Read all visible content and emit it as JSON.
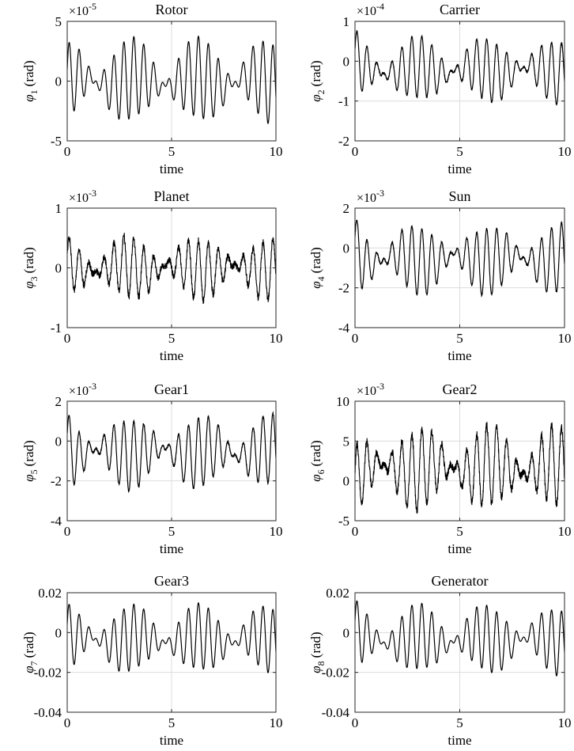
{
  "chart_data": [
    {
      "type": "line",
      "title": "Rotor",
      "ylabel_sym": "φ",
      "ylabel_sub": "1",
      "ylabel_unit": "(rad)",
      "xlabel": "time",
      "xlim": [
        0,
        10
      ],
      "ylim": [
        -5,
        5
      ],
      "xticks": [
        "0",
        "5",
        "10"
      ],
      "yticks": [
        "-5",
        "0",
        "5"
      ],
      "exponent_base": "×10",
      "exponent_power": "-5",
      "signal": {
        "amplitude": 3.4,
        "freqs": [
          1.95,
          2.25
        ],
        "noise": 0.0
      },
      "x": [
        0,
        1,
        2,
        3,
        4,
        5,
        6,
        7,
        8,
        9,
        10
      ],
      "values": [
        0,
        4.1,
        -2.5,
        4.2,
        -0.5,
        4.3,
        -2.3,
        4.2,
        -1.5,
        4.2,
        2.8
      ]
    },
    {
      "type": "line",
      "title": "Carrier",
      "ylabel_sym": "φ",
      "ylabel_sub": "2",
      "ylabel_unit": "(rad)",
      "xlabel": "time",
      "xlim": [
        0,
        10
      ],
      "ylim": [
        -2,
        1
      ],
      "xticks": [
        "0",
        "5",
        "10"
      ],
      "yticks": [
        "-2",
        "-1",
        "0",
        "1"
      ],
      "exponent_base": "×10",
      "exponent_power": "-4",
      "signal": {
        "amplitude": 0.78,
        "offset": -0.22,
        "freqs": [
          1.95,
          2.25
        ],
        "noise": 0.03
      },
      "x": [
        0,
        1,
        2,
        3,
        4,
        5,
        6,
        7,
        8,
        9,
        10
      ],
      "values": [
        0,
        0.5,
        -1.0,
        0.5,
        -0.6,
        0.5,
        -1.0,
        0.5,
        -0.6,
        0.5,
        -0.7
      ]
    },
    {
      "type": "line",
      "title": "Planet",
      "ylabel_sym": "φ",
      "ylabel_sub": "3",
      "ylabel_unit": "(rad)",
      "xlabel": "time",
      "xlim": [
        0,
        10
      ],
      "ylim": [
        -1,
        1
      ],
      "xticks": [
        "0",
        "5",
        "10"
      ],
      "yticks": [
        "-1",
        "0",
        "1"
      ],
      "exponent_base": "×10",
      "exponent_power": "-3",
      "signal": {
        "amplitude": 0.5,
        "freqs": [
          1.95,
          2.25
        ],
        "noise": 0.12
      },
      "x": [
        0,
        1,
        2,
        3,
        4,
        5,
        6,
        7,
        8,
        9,
        10
      ],
      "values": [
        0,
        0.6,
        -0.7,
        0.75,
        -0.4,
        0.7,
        -0.6,
        0.7,
        -0.5,
        0.7,
        0.3
      ]
    },
    {
      "type": "line",
      "title": "Sun",
      "ylabel_sym": "φ",
      "ylabel_sub": "4",
      "ylabel_unit": "(rad)",
      "xlabel": "time",
      "xlim": [
        0,
        10
      ],
      "ylim": [
        -4,
        2
      ],
      "xticks": [
        "0",
        "5",
        "10"
      ],
      "yticks": [
        "-4",
        "-2",
        "0",
        "2"
      ],
      "exponent_base": "×10",
      "exponent_power": "-3",
      "signal": {
        "amplitude": 1.7,
        "offset": -0.55,
        "freqs": [
          1.95,
          2.25
        ],
        "noise": 0.03
      },
      "x": [
        0,
        1,
        2,
        3,
        4,
        5,
        6,
        7,
        8,
        9,
        10
      ],
      "values": [
        0,
        1.1,
        -2.1,
        1.1,
        -1.2,
        1.1,
        -2.1,
        1.1,
        -1.2,
        1.1,
        -1.5
      ]
    },
    {
      "type": "line",
      "title": "Gear1",
      "ylabel_sym": "φ",
      "ylabel_sub": "5",
      "ylabel_unit": "(rad)",
      "xlabel": "time",
      "xlim": [
        0,
        10
      ],
      "ylim": [
        -4,
        2
      ],
      "xticks": [
        "0",
        "5",
        "10"
      ],
      "yticks": [
        "-4",
        "-2",
        "0",
        "2"
      ],
      "exponent_base": "×10",
      "exponent_power": "-3",
      "signal": {
        "amplitude": 1.75,
        "offset": -0.55,
        "freqs": [
          1.95,
          2.25
        ],
        "noise": 0.03
      },
      "x": [
        0,
        1,
        2,
        3,
        4,
        5,
        6,
        7,
        8,
        9,
        10
      ],
      "values": [
        0,
        1.2,
        -2.3,
        1.2,
        -1.2,
        1.2,
        -2.3,
        1.2,
        -1.2,
        1.1,
        -1.6
      ]
    },
    {
      "type": "line",
      "title": "Gear2",
      "ylabel_sym": "φ",
      "ylabel_sub": "6",
      "ylabel_unit": "(rad)",
      "xlabel": "time",
      "xlim": [
        0,
        10
      ],
      "ylim": [
        -5,
        10
      ],
      "xticks": [
        "0",
        "5",
        "10"
      ],
      "yticks": [
        "-5",
        "0",
        "5",
        "10"
      ],
      "exponent_base": "×10",
      "exponent_power": "-3",
      "signal": {
        "amplitude": 5.0,
        "offset": 1.6,
        "freqs": [
          1.95,
          2.25
        ],
        "noise": 0.1
      },
      "x": [
        0,
        1,
        2,
        3,
        4,
        5,
        6,
        7,
        8,
        9,
        10
      ],
      "values": [
        0,
        7,
        -3.6,
        7,
        -1.5,
        7,
        -3.6,
        7,
        -1.5,
        7,
        5
      ]
    },
    {
      "type": "line",
      "title": "Gear3",
      "ylabel_sym": "φ",
      "ylabel_sub": "7",
      "ylabel_unit": "(rad)",
      "xlabel": "time",
      "xlim": [
        0,
        10
      ],
      "ylim": [
        -0.04,
        0.02
      ],
      "xticks": [
        "0",
        "5",
        "10"
      ],
      "yticks": [
        "-0.04",
        "-0.02",
        "0",
        "0.02"
      ],
      "exponent_base": "",
      "exponent_power": "",
      "signal": {
        "amplitude": 0.0165,
        "offset": -0.0035,
        "freqs": [
          1.95,
          2.25
        ],
        "noise": 0.0
      },
      "x": [
        0,
        1,
        2,
        3,
        4,
        5,
        6,
        7,
        8,
        9,
        10
      ],
      "values": [
        0,
        0.012,
        -0.02,
        0.012,
        -0.012,
        0.012,
        -0.02,
        0.012,
        -0.012,
        0.012,
        -0.013
      ]
    },
    {
      "type": "line",
      "title": "Generator",
      "ylabel_sym": "φ",
      "ylabel_sub": "8",
      "ylabel_unit": "(rad)",
      "xlabel": "time",
      "xlim": [
        0,
        10
      ],
      "ylim": [
        -0.04,
        0.02
      ],
      "xticks": [
        "0",
        "5",
        "10"
      ],
      "yticks": [
        "-0.04",
        "-0.02",
        "0",
        "0.02"
      ],
      "exponent_base": "",
      "exponent_power": "",
      "signal": {
        "amplitude": 0.0165,
        "offset": -0.0035,
        "freqs": [
          1.95,
          2.25
        ],
        "noise": 0.0
      },
      "x": [
        0,
        1,
        2,
        3,
        4,
        5,
        6,
        7,
        8,
        9,
        10
      ],
      "values": [
        0,
        0.012,
        -0.02,
        0.012,
        -0.012,
        0.012,
        -0.02,
        0.012,
        -0.012,
        0.012,
        -0.013
      ]
    }
  ],
  "colors": {
    "line": "#000000",
    "grid": "#dcdcdc",
    "axis": "#262626",
    "background": "#ffffff"
  }
}
